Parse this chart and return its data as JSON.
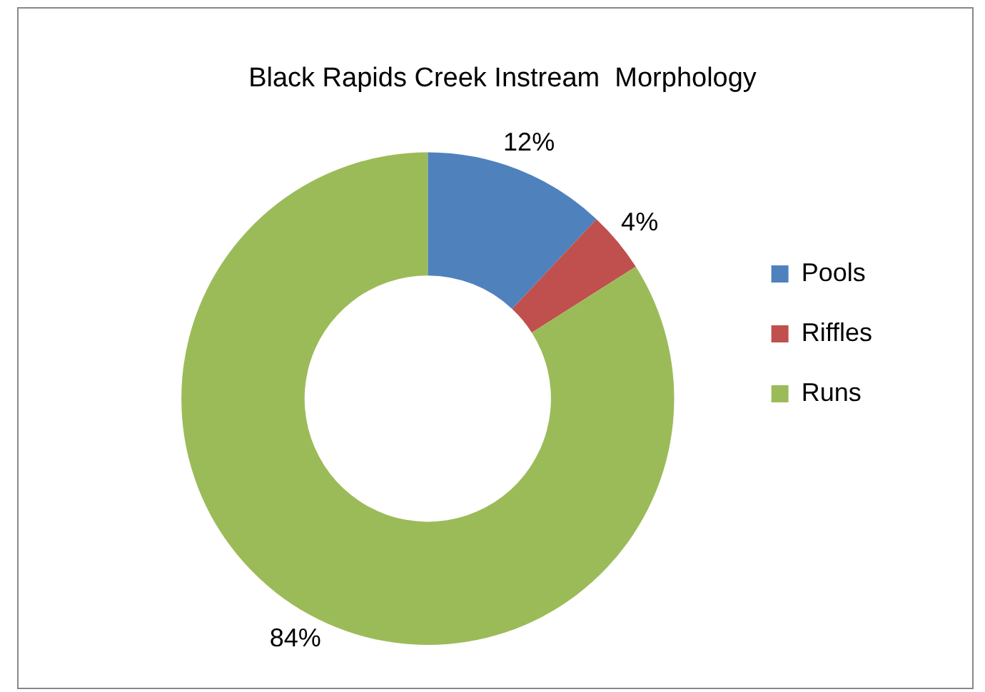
{
  "chart_data": {
    "type": "donut",
    "title": "Black Rapids Creek Instream  Morphology",
    "categories": [
      "Pools",
      "Riffles",
      "Runs"
    ],
    "values": [
      12,
      4,
      84
    ],
    "colors": [
      "#4f81bd",
      "#c0504d",
      "#9bbb59"
    ],
    "value_labels": [
      "12%",
      "4%",
      "84%"
    ],
    "legend": "right"
  }
}
